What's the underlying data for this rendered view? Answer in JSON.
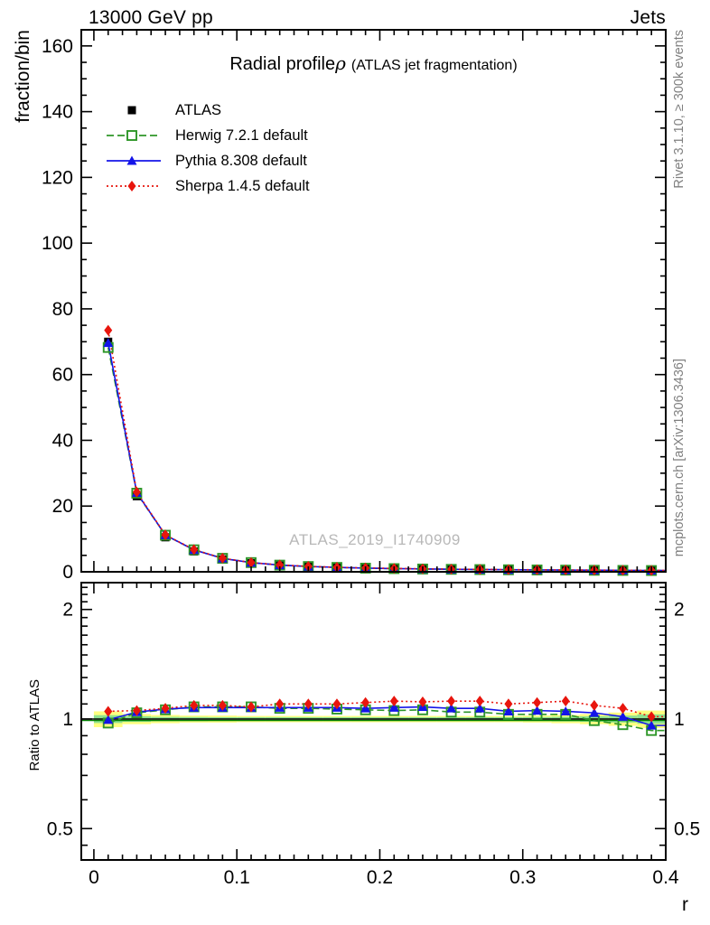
{
  "header": {
    "left": "13000 GeV pp",
    "right": "Jets"
  },
  "title": {
    "main": "Radial profile",
    "symbol": "ρ",
    "paren": "(ATLAS jet fragmentation)"
  },
  "side_notes": {
    "top_right": "Rivet 3.1.10, ≥ 300k events",
    "bottom_right": "mcplots.cern.ch [arXiv:1306.3436]"
  },
  "watermark": "ATLAS_2019_I1740909",
  "axes": {
    "main_ylabel": "fraction/bin",
    "ratio_ylabel": "Ratio to ATLAS",
    "xlabel": "r"
  },
  "colors": {
    "atlas": "#000000",
    "herwig": "#2e9628",
    "pythia": "#1414e8",
    "sherpa": "#e8150d",
    "band_outer": "#ffff80",
    "band_inner": "#8fe28f",
    "ref_line": "#008000",
    "note_gray": "#7f7f7f",
    "watermark_gray": "#b8b8b8"
  },
  "chart_data": {
    "type": "line",
    "title": "Radial profile ρ (ATLAS jet fragmentation)",
    "xlabel": "r",
    "ylabel": "fraction/bin",
    "ratio_ylabel": "Ratio to ATLAS",
    "x": [
      0.01,
      0.03,
      0.05,
      0.07,
      0.09,
      0.11,
      0.13,
      0.15,
      0.17,
      0.19,
      0.21,
      0.23,
      0.25,
      0.27,
      0.29,
      0.31,
      0.33,
      0.35,
      0.37,
      0.39
    ],
    "bin_width": 0.02,
    "xlim": [
      -0.0088,
      0.4
    ],
    "main_ylim": [
      0,
      164.9
    ],
    "ratio_ylim": [
      0.41,
      2.37
    ],
    "ratio_scale": "log",
    "xticks": [
      0,
      0.1,
      0.2,
      0.3,
      0.4
    ],
    "xtick_labels": [
      "0",
      "0.1",
      "0.2",
      "0.3",
      "0.4"
    ],
    "x_minor_step": 0.01,
    "main_yticks": [
      0,
      20,
      40,
      60,
      80,
      100,
      120,
      140,
      160
    ],
    "main_y_minor_step": 5,
    "ratio_yticks": [
      0.5,
      1,
      2
    ],
    "ratio_ytick_labels": [
      "0.5",
      "1",
      "2"
    ],
    "ratio_y_minor_ticks": [
      0.45,
      0.6,
      0.7,
      0.8,
      0.9,
      1.1,
      1.2,
      1.3,
      1.4,
      1.5,
      1.6,
      1.7,
      1.8,
      1.9,
      2.1,
      2.2,
      2.3
    ],
    "legend_position": "top-left",
    "series": [
      {
        "name": "ATLAS",
        "color": "#000000",
        "marker": "square-filled",
        "line": "none",
        "values": [
          70.0,
          23.0,
          10.5,
          6.2,
          3.8,
          2.6,
          1.9,
          1.5,
          1.25,
          1.05,
          0.92,
          0.8,
          0.72,
          0.65,
          0.6,
          0.55,
          0.5,
          0.47,
          0.44,
          0.42
        ]
      },
      {
        "name": "Herwig 7.2.1 default",
        "color": "#2e9628",
        "marker": "square-open",
        "line": "dashed",
        "ratio_to_atlas": [
          0.975,
          1.04,
          1.06,
          1.08,
          1.08,
          1.08,
          1.07,
          1.07,
          1.065,
          1.06,
          1.055,
          1.06,
          1.045,
          1.045,
          1.03,
          1.03,
          1.03,
          0.99,
          0.965,
          0.93
        ]
      },
      {
        "name": "Pythia 8.308 default",
        "color": "#1414e8",
        "marker": "triangle-filled",
        "line": "solid",
        "ratio_to_atlas": [
          0.995,
          1.045,
          1.065,
          1.075,
          1.075,
          1.075,
          1.075,
          1.075,
          1.075,
          1.07,
          1.075,
          1.08,
          1.07,
          1.07,
          1.05,
          1.055,
          1.05,
          1.04,
          1.015,
          0.96
        ]
      },
      {
        "name": "Sherpa 1.4.5 default",
        "color": "#e8150d",
        "marker": "diamond-filled",
        "line": "dotted",
        "ratio_to_atlas": [
          1.05,
          1.055,
          1.07,
          1.09,
          1.09,
          1.08,
          1.1,
          1.1,
          1.1,
          1.11,
          1.12,
          1.115,
          1.12,
          1.12,
          1.1,
          1.11,
          1.12,
          1.09,
          1.07,
          1.015
        ]
      }
    ],
    "ratio_band_half_width_outer": [
      0.05,
      0.032,
      0.026,
      0.022,
      0.022,
      0.02,
      0.02,
      0.02,
      0.02,
      0.02,
      0.02,
      0.02,
      0.02,
      0.02,
      0.02,
      0.022,
      0.026,
      0.032,
      0.042,
      0.055
    ],
    "ratio_band_half_width_inner": [
      0.025,
      0.018,
      0.014,
      0.013,
      0.012,
      0.012,
      0.012,
      0.012,
      0.012,
      0.012,
      0.012,
      0.012,
      0.012,
      0.012,
      0.012,
      0.013,
      0.015,
      0.018,
      0.022,
      0.03
    ]
  }
}
